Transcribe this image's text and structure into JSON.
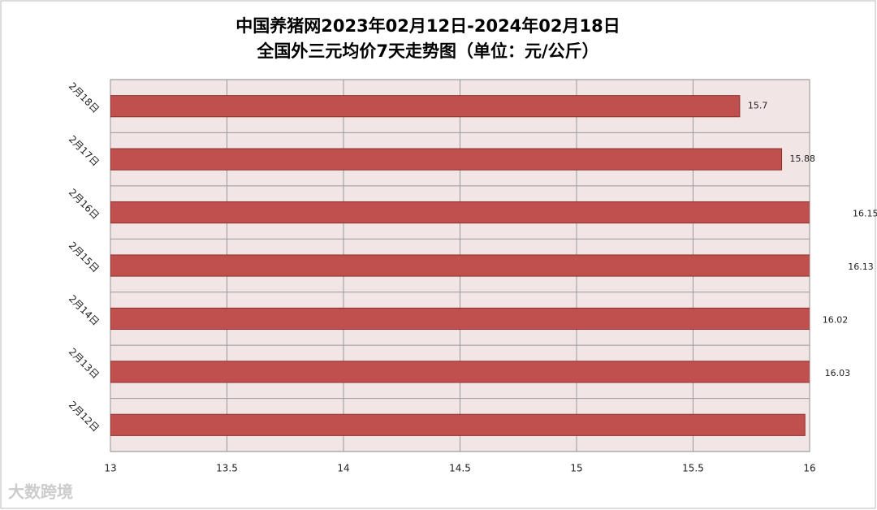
{
  "chart_data": {
    "type": "hbar",
    "title": [
      "中国养猪网2023年02月12日-2024年02月18日",
      "全国外三元均价7天走势图（单位：元/公斤）"
    ],
    "categories": [
      "2月18日",
      "2月17日",
      "2月16日",
      "2月15日",
      "2月14日",
      "2月13日",
      "2月12日"
    ],
    "values": [
      15.7,
      15.88,
      16.15,
      16.13,
      16.02,
      16.03,
      15.98
    ],
    "value_labels": [
      "15.7",
      "15.88",
      "16.15",
      "16.13",
      "16.02",
      "16.03",
      null
    ],
    "color": "#c0504d",
    "xlim": [
      13,
      16
    ],
    "xticks": [
      13,
      13.5,
      14,
      14.5,
      15,
      15.5,
      16
    ],
    "grid": true,
    "watermark": "大数跨境"
  }
}
